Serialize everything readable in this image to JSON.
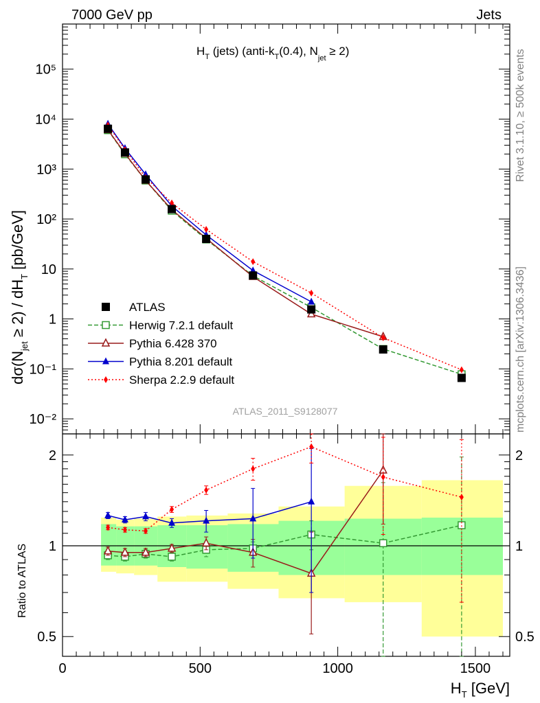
{
  "header": {
    "left": "7000 GeV pp",
    "right": "Jets"
  },
  "side_text": {
    "rivet": "Rivet 3.1.10, ≥ 500k events",
    "source": "mcplots.cern.ch [arXiv:1306.3436]"
  },
  "watermark": "ATLAS_2011_S9128077",
  "colors": {
    "ATLAS": "#000000",
    "Herwig": "#339933",
    "Pythia6": "#991a1a",
    "Pythia8": "#0000cc",
    "Sherpa": "#ff0000",
    "band_inner": "#99ff99",
    "band_outer": "#ffff99"
  },
  "chart_data": [
    {
      "type": "line",
      "panel": "main",
      "title_parts": [
        "H",
        "T",
        " (jets) (anti-k",
        "T",
        "(0.4), N",
        "jet",
        " ≥ 2)"
      ],
      "ylabel_parts": [
        "dσ(N",
        "jet",
        " ≥ 2) / dH",
        "T",
        " [pb/GeV]"
      ],
      "yscale": "log",
      "xlim": [
        0,
        1625
      ],
      "ylim": [
        0.005,
        800000
      ],
      "y_ticks": [
        "10⁻²",
        "10⁻¹",
        "1",
        "10",
        "10²",
        "10³",
        "10⁴",
        "10⁵"
      ],
      "legend_position": "lower-left",
      "x": [
        165,
        227,
        302,
        397,
        522,
        692,
        904,
        1165,
        1450
      ],
      "series": [
        {
          "name": "ATLAS",
          "values": [
            6400,
            2150,
            620,
            158,
            40,
            7.4,
            1.55,
            0.245,
            0.066
          ]
        },
        {
          "name": "Herwig 7.2.1 default",
          "values": [
            6000,
            1980,
            590,
            147,
            39,
            7.3,
            1.7,
            0.25,
            0.078
          ]
        },
        {
          "name": "Pythia 6.428 370",
          "values": [
            6100,
            2050,
            590,
            154,
            41,
            7.0,
            1.25,
            0.44,
            null
          ]
        },
        {
          "name": "Pythia 8.201 default",
          "values": [
            8000,
            2600,
            780,
            182,
            48,
            9.3,
            2.2,
            null,
            null
          ]
        },
        {
          "name": "Sherpa 2.2.9 default",
          "values": [
            7600,
            2450,
            680,
            210,
            62,
            14.0,
            3.3,
            0.42,
            0.096
          ]
        }
      ]
    },
    {
      "type": "line",
      "panel": "ratio",
      "ylabel": "Ratio to ATLAS",
      "xlabel_parts": [
        "H",
        "T",
        " [GeV]"
      ],
      "yscale": "log",
      "xlim": [
        0,
        1625
      ],
      "ylim": [
        0.43,
        2.35
      ],
      "y_ticks": [
        "0.5",
        "1",
        "2"
      ],
      "x_ticks": [
        "0",
        "500",
        "1000",
        "1500"
      ],
      "x": [
        165,
        227,
        302,
        397,
        522,
        692,
        904,
        1165,
        1450
      ],
      "bins": [
        {
          "lo": 140,
          "hi": 195,
          "inner": [
            0.86,
            1.18
          ],
          "outer": [
            0.82,
            1.24
          ]
        },
        {
          "lo": 195,
          "hi": 260,
          "inner": [
            0.86,
            1.16
          ],
          "outer": [
            0.81,
            1.22
          ]
        },
        {
          "lo": 260,
          "hi": 345,
          "inner": [
            0.86,
            1.16
          ],
          "outer": [
            0.8,
            1.23
          ]
        },
        {
          "lo": 345,
          "hi": 450,
          "inner": [
            0.85,
            1.17
          ],
          "outer": [
            0.76,
            1.25
          ]
        },
        {
          "lo": 450,
          "hi": 600,
          "inner": [
            0.84,
            1.17
          ],
          "outer": [
            0.76,
            1.26
          ]
        },
        {
          "lo": 600,
          "hi": 785,
          "inner": [
            0.82,
            1.18
          ],
          "outer": [
            0.72,
            1.28
          ]
        },
        {
          "lo": 785,
          "hi": 1025,
          "inner": [
            0.8,
            1.21
          ],
          "outer": [
            0.67,
            1.35
          ]
        },
        {
          "lo": 1025,
          "hi": 1305,
          "inner": [
            0.8,
            1.23
          ],
          "outer": [
            0.65,
            1.58
          ]
        },
        {
          "lo": 1305,
          "hi": 1600,
          "inner": [
            0.8,
            1.24
          ],
          "outer": [
            0.5,
            1.65
          ]
        }
      ],
      "series": [
        {
          "name": "Herwig 7.2.1 default",
          "values": [
            0.93,
            0.92,
            0.94,
            0.92,
            0.97,
            0.98,
            1.09,
            1.02,
            1.17
          ],
          "err": [
            0.03,
            0.03,
            0.03,
            0.03,
            0.05,
            0.05,
            0.12,
            0.6,
            0.8
          ]
        },
        {
          "name": "Pythia 6.428 370",
          "values": [
            0.96,
            0.95,
            0.95,
            0.98,
            1.02,
            0.95,
            0.81,
            1.78,
            null
          ],
          "err": [
            0.03,
            0.03,
            0.03,
            0.03,
            0.05,
            0.1,
            0.3,
            0.6,
            null
          ]
        },
        {
          "name": "Pythia 8.201 default",
          "values": [
            1.26,
            1.22,
            1.25,
            1.19,
            1.21,
            1.23,
            1.4,
            null,
            null
          ],
          "err": [
            0.03,
            0.03,
            0.04,
            0.04,
            0.1,
            0.32,
            0.7,
            null,
            null
          ]
        },
        {
          "name": "Sherpa 2.2.9 default",
          "values": [
            1.15,
            1.13,
            1.12,
            1.32,
            1.53,
            1.8,
            2.13,
            1.69,
            1.45
          ],
          "err": [
            0.02,
            0.02,
            0.02,
            0.03,
            0.05,
            0.15,
            0.25,
            0.6,
            0.8
          ]
        }
      ]
    }
  ]
}
